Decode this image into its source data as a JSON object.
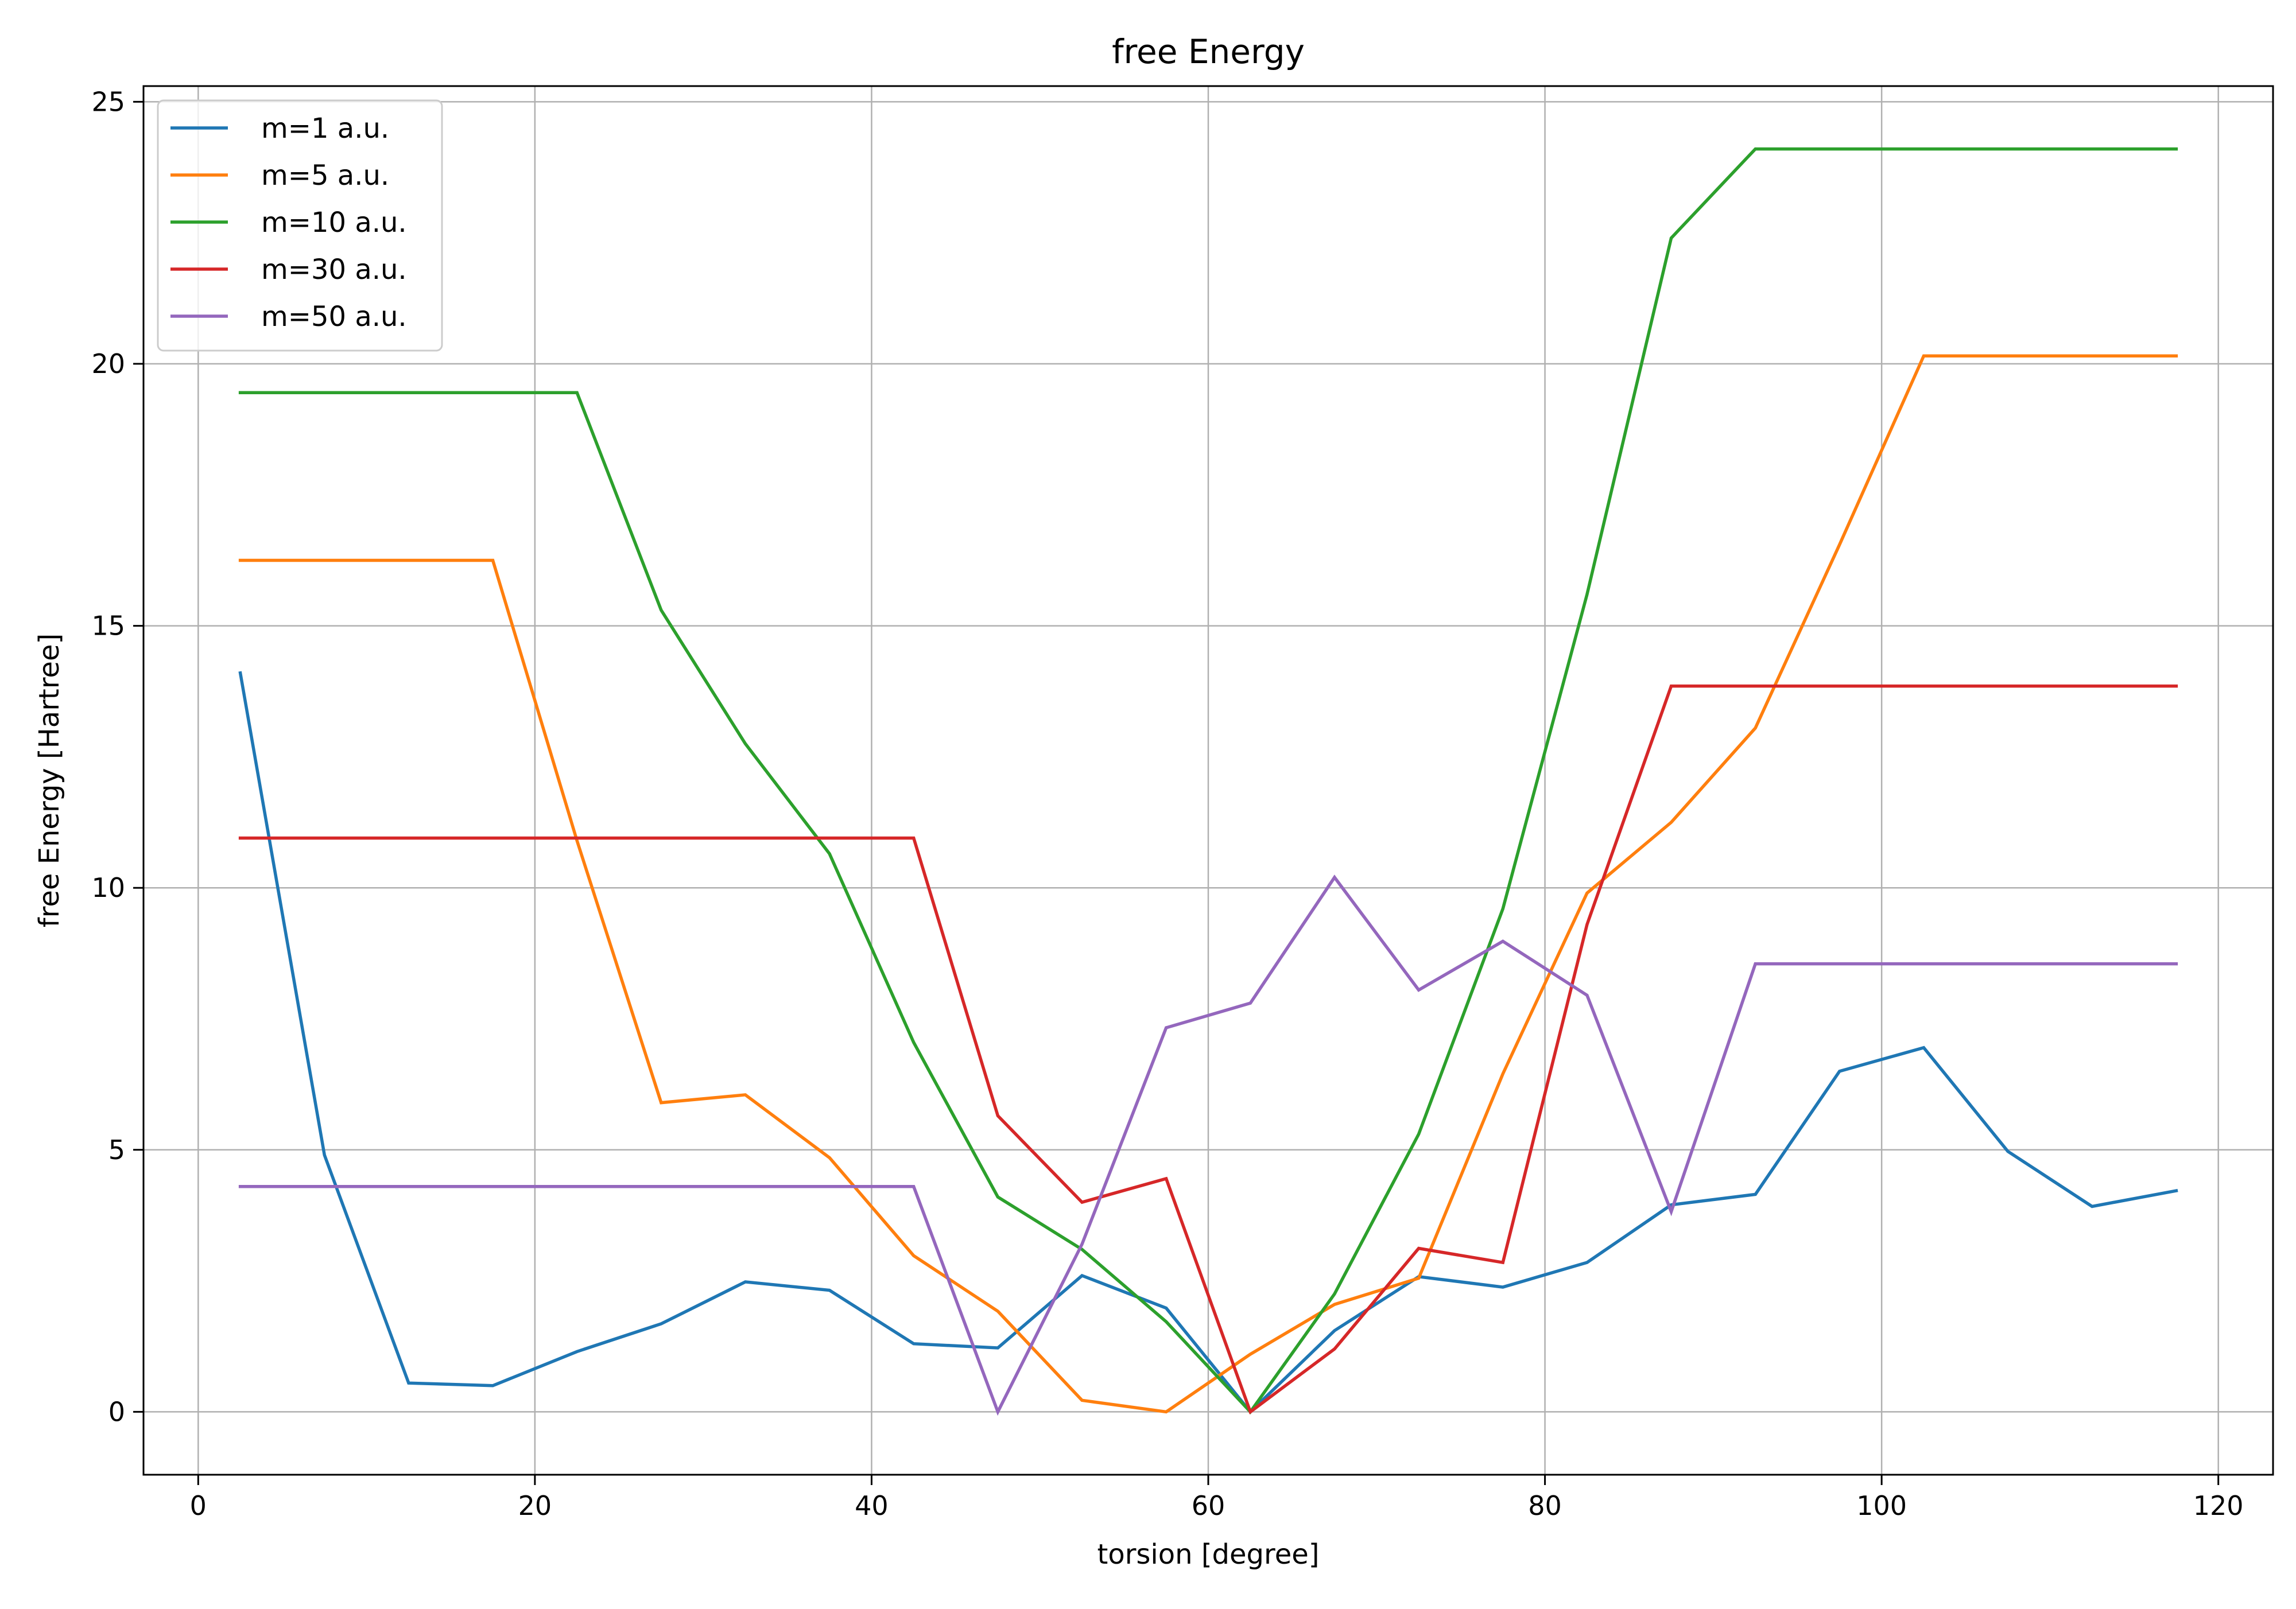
{
  "chart_data": {
    "type": "line",
    "title": "free Energy",
    "xlabel": "torsion [degree]",
    "ylabel": "free Energy [Hartree]",
    "xlim": [
      -3.25,
      123.25
    ],
    "ylim": [
      -1.2,
      25.3
    ],
    "xticks": [
      0,
      20,
      40,
      60,
      80,
      100,
      120
    ],
    "yticks": [
      0,
      5,
      10,
      15,
      20,
      25
    ],
    "grid": true,
    "legend": "top-left",
    "x": [
      2.5,
      7.5,
      12.5,
      17.5,
      22.5,
      27.5,
      32.5,
      37.5,
      42.5,
      47.5,
      52.5,
      57.5,
      62.5,
      67.5,
      72.5,
      77.5,
      82.5,
      87.5,
      92.5,
      97.5,
      102.5,
      107.5,
      112.5,
      117.5
    ],
    "series": [
      {
        "name": "m=1 a.u.",
        "color": "#1f77b4",
        "values": [
          14.1,
          4.9,
          0.55,
          0.5,
          1.15,
          1.68,
          2.48,
          2.32,
          1.3,
          1.22,
          2.6,
          1.98,
          0.0,
          1.55,
          2.58,
          2.38,
          2.85,
          3.95,
          4.15,
          6.5,
          6.95,
          4.97,
          3.92,
          4.22
        ]
      },
      {
        "name": "m=5 a.u.",
        "color": "#ff7f0e",
        "values": [
          16.25,
          16.25,
          16.25,
          16.25,
          10.9,
          5.9,
          6.05,
          4.85,
          2.98,
          1.92,
          0.22,
          0.0,
          1.1,
          2.05,
          2.55,
          6.45,
          9.9,
          11.25,
          13.05,
          16.55,
          20.15,
          20.15,
          20.15,
          20.15
        ]
      },
      {
        "name": "m=10 a.u.",
        "color": "#2ca02c",
        "values": [
          19.45,
          19.45,
          19.45,
          19.45,
          19.45,
          15.3,
          12.75,
          10.65,
          7.05,
          4.1,
          3.1,
          1.72,
          0.0,
          2.25,
          5.3,
          9.6,
          15.6,
          22.4,
          24.1,
          24.1,
          24.1,
          24.1,
          24.1,
          24.1
        ]
      },
      {
        "name": "m=30 a.u.",
        "color": "#d62728",
        "values": [
          10.95,
          10.95,
          10.95,
          10.95,
          10.95,
          10.95,
          10.95,
          10.95,
          10.95,
          5.65,
          4.0,
          4.45,
          0.0,
          1.2,
          3.12,
          2.85,
          9.3,
          13.85,
          13.85,
          13.85,
          13.85,
          13.85,
          13.85,
          13.85
        ]
      },
      {
        "name": "m=50 a.u.",
        "color": "#9467bd",
        "values": [
          4.3,
          4.3,
          4.3,
          4.3,
          4.3,
          4.3,
          4.3,
          4.3,
          4.3,
          0.0,
          3.2,
          7.33,
          7.8,
          10.2,
          8.05,
          8.98,
          7.95,
          3.82,
          8.55,
          8.55,
          8.55,
          8.55,
          8.55,
          8.55
        ]
      }
    ]
  }
}
